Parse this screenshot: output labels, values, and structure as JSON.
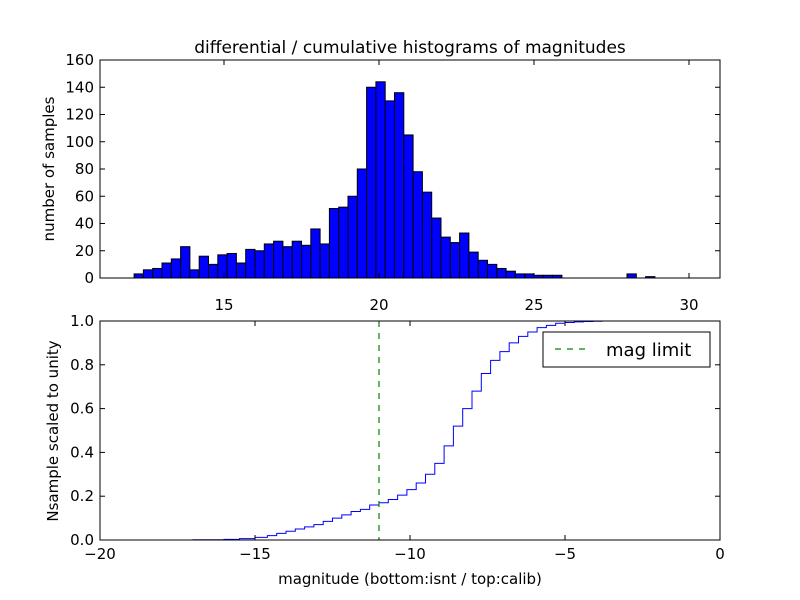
{
  "chart_data": [
    {
      "type": "bar",
      "title": "differential / cumulative histograms of magnitudes",
      "xlabel": "",
      "ylabel": "number of samples",
      "xlim": [
        11,
        31
      ],
      "ylim": [
        0,
        160
      ],
      "xticks": [
        15,
        20,
        25,
        30
      ],
      "yticks": [
        0,
        20,
        40,
        60,
        80,
        100,
        120,
        140,
        160
      ],
      "bin_width": 0.3,
      "bin_start": 12.1,
      "color": "#0000ff",
      "values": [
        3,
        6,
        7,
        11,
        14,
        23,
        6,
        16,
        10,
        17,
        18,
        11,
        21,
        20,
        25,
        27,
        23,
        27,
        24,
        36,
        25,
        51,
        52,
        60,
        80,
        140,
        144,
        130,
        136,
        105,
        78,
        63,
        44,
        30,
        26,
        33,
        19,
        13,
        10,
        7,
        5,
        3,
        3,
        2,
        2,
        2,
        0,
        0,
        0,
        0,
        0,
        0,
        0,
        3,
        0,
        1,
        0,
        0,
        0,
        0,
        0
      ]
    },
    {
      "type": "line",
      "style": "step",
      "xlabel": "magnitude (bottom:isnt / top:calib)",
      "ylabel": "Nsample scaled to unity",
      "xlim": [
        -20,
        0
      ],
      "ylim": [
        0.0,
        1.0
      ],
      "xticks": [
        -20,
        -15,
        -10,
        -5,
        0
      ],
      "yticks": [
        0.0,
        0.2,
        0.4,
        0.6,
        0.8,
        1.0
      ],
      "ytick_labels": [
        "0.0",
        "0.2",
        "0.4",
        "0.6",
        "0.8",
        "1.0"
      ],
      "line_color": "#0000ff",
      "x": [
        -20,
        -19,
        -18,
        -17,
        -16,
        -15.5,
        -15,
        -14.6,
        -14.3,
        -14.0,
        -13.7,
        -13.4,
        -13.1,
        -12.8,
        -12.5,
        -12.2,
        -11.9,
        -11.6,
        -11.3,
        -11.0,
        -10.7,
        -10.4,
        -10.1,
        -9.8,
        -9.5,
        -9.2,
        -8.9,
        -8.6,
        -8.3,
        -8.0,
        -7.7,
        -7.4,
        -7.1,
        -6.8,
        -6.5,
        -6.2,
        -5.9,
        -5.6,
        -5.3,
        -5.0,
        -4.7,
        -4.4,
        -4.1,
        -3.8,
        -3.5,
        0
      ],
      "y": [
        0.0,
        0.0,
        0.0,
        0.001,
        0.003,
        0.006,
        0.012,
        0.02,
        0.03,
        0.04,
        0.05,
        0.06,
        0.07,
        0.085,
        0.1,
        0.115,
        0.13,
        0.14,
        0.16,
        0.17,
        0.185,
        0.205,
        0.23,
        0.26,
        0.3,
        0.35,
        0.43,
        0.52,
        0.6,
        0.68,
        0.76,
        0.82,
        0.86,
        0.9,
        0.93,
        0.95,
        0.97,
        0.98,
        0.99,
        0.993,
        0.996,
        0.998,
        0.999,
        1.0,
        1.0,
        1.0
      ],
      "vline": {
        "x": -11,
        "color": "#008000",
        "label": "mag limit"
      },
      "legend_position": "upper-right"
    }
  ]
}
